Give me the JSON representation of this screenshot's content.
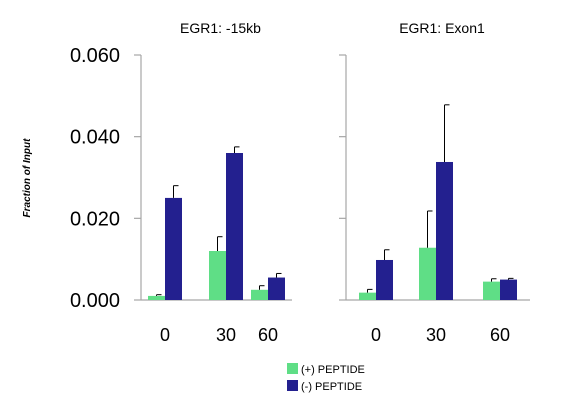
{
  "chart_data": {
    "type": "bar",
    "ylabel": "Fraction of Input",
    "ylim": [
      0,
      0.06
    ],
    "yticks": [
      "0.000",
      "0.020",
      "0.040",
      "0.060"
    ],
    "grid": false,
    "legend_placement": "bottom-center",
    "colors": {
      "plus_peptide": "#5fde86",
      "minus_peptide": "#23208f",
      "axis": "#a6a6a6",
      "error_bar": "#000000",
      "text": "#000000"
    },
    "panels": [
      {
        "title": "EGR1: -15kb",
        "categories": [
          "0",
          "30",
          "60"
        ],
        "series": [
          {
            "name": "(+) PEPTIDE",
            "values": [
              0.001,
              0.012,
              0.0025
            ],
            "errors": [
              0.0003,
              0.0035,
              0.001
            ]
          },
          {
            "name": "(-) PEPTIDE",
            "values": [
              0.025,
              0.036,
              0.0055
            ],
            "errors": [
              0.003,
              0.0015,
              0.001
            ]
          }
        ]
      },
      {
        "title": "EGR1: Exon1",
        "categories": [
          "0",
          "30",
          "60"
        ],
        "series": [
          {
            "name": "(+) PEPTIDE",
            "values": [
              0.0018,
              0.0128,
              0.0045
            ],
            "errors": [
              0.0008,
              0.009,
              0.0007
            ]
          },
          {
            "name": "(-) PEPTIDE",
            "values": [
              0.0098,
              0.0338,
              0.005
            ],
            "errors": [
              0.0025,
              0.014,
              0.0003
            ]
          }
        ]
      }
    ]
  }
}
